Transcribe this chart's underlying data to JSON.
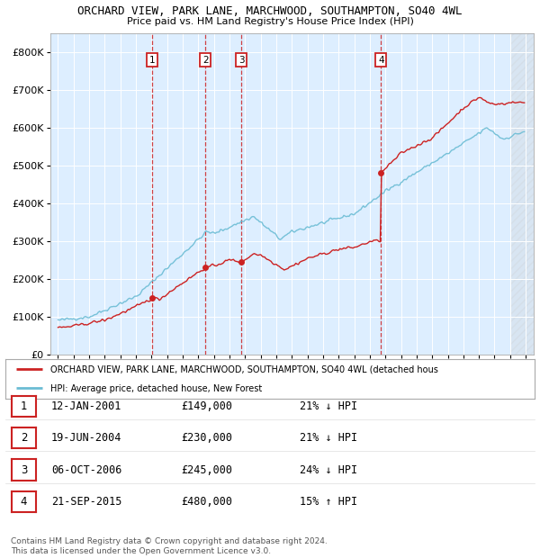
{
  "title1": "ORCHARD VIEW, PARK LANE, MARCHWOOD, SOUTHAMPTON, SO40 4WL",
  "title2": "Price paid vs. HM Land Registry's House Price Index (HPI)",
  "legend_label1": "ORCHARD VIEW, PARK LANE, MARCHWOOD, SOUTHAMPTON, SO40 4WL (detached hous",
  "legend_label2": "HPI: Average price, detached house, New Forest",
  "transactions": [
    {
      "num": 1,
      "date": "12-JAN-2001",
      "price": 149000,
      "pct": "21%",
      "dir": "↓",
      "x_year": 2001.04
    },
    {
      "num": 2,
      "date": "19-JUN-2004",
      "price": 230000,
      "pct": "21%",
      "dir": "↓",
      "x_year": 2004.46
    },
    {
      "num": 3,
      "date": "06-OCT-2006",
      "price": 245000,
      "pct": "24%",
      "dir": "↓",
      "x_year": 2006.76
    },
    {
      "num": 4,
      "date": "21-SEP-2015",
      "price": 480000,
      "pct": "15%",
      "dir": "↑",
      "x_year": 2015.72
    }
  ],
  "hpi_color": "#6bbcd4",
  "price_color": "#cc2222",
  "dashed_color": "#cc2222",
  "background_color": "#ddeeff",
  "grid_color": "#ffffff",
  "footer": "Contains HM Land Registry data © Crown copyright and database right 2024.\nThis data is licensed under the Open Government Licence v3.0.",
  "ylim": [
    0,
    850000
  ],
  "yticks": [
    0,
    100000,
    200000,
    300000,
    400000,
    500000,
    600000,
    700000,
    800000
  ],
  "xlim_start": 1994.5,
  "xlim_end": 2025.5
}
